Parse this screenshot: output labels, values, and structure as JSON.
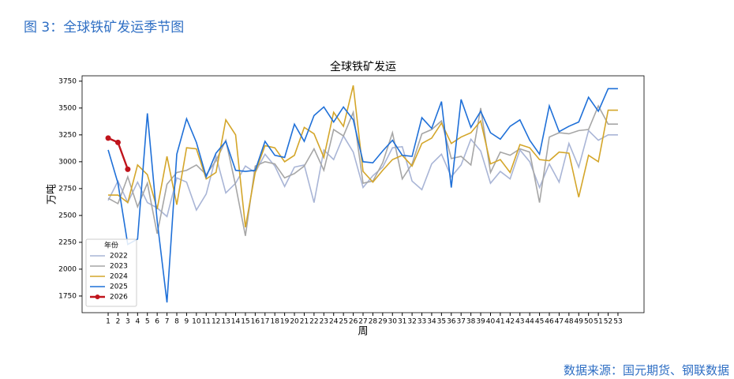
{
  "header": "图 3：全球铁矿发运季节图",
  "source": "数据来源：国元期货、钢联数据",
  "chart_data": {
    "type": "line",
    "title": "全球铁矿发运",
    "xlabel": "周",
    "ylabel": "万吨",
    "legend_title": "年份",
    "legend": "lower left",
    "x": [
      1,
      2,
      3,
      4,
      5,
      6,
      7,
      8,
      9,
      10,
      11,
      12,
      13,
      14,
      15,
      16,
      17,
      18,
      19,
      20,
      21,
      22,
      23,
      24,
      25,
      26,
      27,
      28,
      29,
      30,
      31,
      32,
      33,
      34,
      35,
      36,
      37,
      38,
      39,
      40,
      41,
      42,
      43,
      44,
      45,
      46,
      47,
      48,
      49,
      50,
      51,
      52,
      53
    ],
    "xlim": [
      -1.66,
      55.66
    ],
    "xticks": [
      1,
      2,
      3,
      4,
      5,
      6,
      7,
      8,
      9,
      10,
      11,
      12,
      13,
      14,
      15,
      16,
      17,
      18,
      19,
      20,
      21,
      22,
      23,
      24,
      25,
      26,
      27,
      28,
      29,
      30,
      31,
      32,
      33,
      34,
      35,
      36,
      37,
      38,
      39,
      40,
      41,
      42,
      43,
      44,
      45,
      46,
      47,
      48,
      49,
      50,
      51,
      52,
      53
    ],
    "ylim": [
      1595,
      3800
    ],
    "yticks": [
      1750,
      2000,
      2250,
      2500,
      2750,
      3000,
      3250,
      3500,
      3750
    ],
    "series": [
      {
        "name": "2022",
        "color": "#a9b5d6",
        "values": [
          2640,
          2820,
          2620,
          2810,
          2620,
          2570,
          2490,
          2850,
          2810,
          2550,
          2700,
          3050,
          2710,
          2800,
          2960,
          2900,
          3070,
          2960,
          2770,
          2950,
          2970,
          2620,
          3110,
          3020,
          3240,
          3090,
          2760,
          2870,
          2950,
          3130,
          3140,
          2820,
          2740,
          2980,
          3070,
          2860,
          2970,
          3210,
          3100,
          2800,
          2910,
          2840,
          3110,
          3000,
          2760,
          2980,
          2810,
          3170,
          2950,
          3290,
          3200,
          3250,
          3250
        ]
      },
      {
        "name": "2023",
        "color": "#a6a6a6",
        "values": [
          2660,
          2610,
          2860,
          2580,
          2800,
          2330,
          2790,
          2900,
          2920,
          2970,
          2880,
          3010,
          3200,
          2780,
          2310,
          2960,
          3000,
          2980,
          2850,
          2890,
          2960,
          3120,
          2920,
          3300,
          3240,
          3460,
          2800,
          2820,
          2990,
          3270,
          2840,
          2980,
          3260,
          3300,
          3380,
          3030,
          3050,
          2970,
          3500,
          2900,
          3090,
          3060,
          3120,
          3090,
          2620,
          3230,
          3270,
          3260,
          3290,
          3300,
          3520,
          3350,
          3350
        ]
      },
      {
        "name": "2024",
        "color": "#d4a62a",
        "values": [
          2690,
          2690,
          2620,
          2970,
          2880,
          2560,
          3050,
          2600,
          3130,
          3120,
          2840,
          2900,
          3390,
          3250,
          2390,
          2900,
          3150,
          3130,
          3000,
          3060,
          3320,
          3260,
          3040,
          3460,
          3330,
          3710,
          2910,
          2810,
          2920,
          3020,
          3060,
          2960,
          3170,
          3220,
          3360,
          3170,
          3230,
          3270,
          3380,
          2980,
          3020,
          2900,
          3160,
          3130,
          3020,
          3010,
          3090,
          3080,
          2670,
          3060,
          3000,
          3480,
          3480
        ]
      },
      {
        "name": "2025",
        "color": "#1f70d8",
        "values": [
          3110,
          2800,
          2230,
          2280,
          3450,
          2450,
          1690,
          3070,
          3400,
          3180,
          2860,
          3080,
          3190,
          2920,
          2910,
          2920,
          3190,
          3060,
          3040,
          3350,
          3190,
          3430,
          3510,
          3370,
          3510,
          3390,
          3000,
          2990,
          3100,
          3200,
          3060,
          3050,
          3410,
          3310,
          3560,
          2760,
          3580,
          3320,
          3470,
          3270,
          3210,
          3330,
          3390,
          3200,
          3070,
          3520,
          3280,
          3330,
          3370,
          3600,
          3470,
          3680,
          3680
        ]
      },
      {
        "name": "2026",
        "color": "#c0141c",
        "marker": "o",
        "values": [
          3220,
          3180,
          2930,
          null,
          null,
          null,
          null,
          null,
          null,
          null,
          null,
          null,
          null,
          null,
          null,
          null,
          null,
          null,
          null,
          null,
          null,
          null,
          null,
          null,
          null,
          null,
          null,
          null,
          null,
          null,
          null,
          null,
          null,
          null,
          null,
          null,
          null,
          null,
          null,
          null,
          null,
          null,
          null,
          null,
          null,
          null,
          null,
          null,
          null,
          null,
          null,
          null,
          null
        ]
      }
    ]
  }
}
